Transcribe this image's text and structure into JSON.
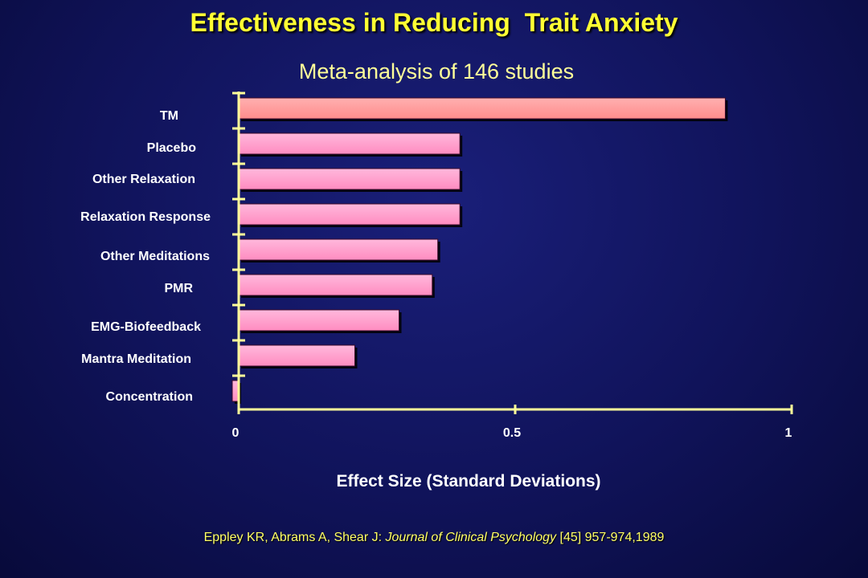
{
  "chart_data": {
    "type": "bar",
    "orientation": "horizontal",
    "title": "Effectiveness in Reducing  Trait Anxiety",
    "subtitle": "Meta-analysis of 146 studies",
    "categories": [
      "TM",
      "Placebo",
      "Other Relaxation",
      "Relaxation  Response",
      "Other Meditations",
      "PMR",
      "EMG-Biofeedback",
      "Mantra Meditation",
      "Concentration"
    ],
    "values": [
      0.88,
      0.4,
      0.4,
      0.4,
      0.36,
      0.35,
      0.29,
      0.21,
      -0.01
    ],
    "xlabel": "Effect Size (Standard Deviations)",
    "ylabel": "",
    "xlim": [
      0,
      1
    ],
    "xticks": [
      "0",
      "0.5",
      "1"
    ],
    "grid": false,
    "colors": {
      "top_bar": "#ff9999",
      "bar": "#ff99cc",
      "axis": "#ffff99"
    }
  },
  "citation": {
    "authors": "Eppley KR, Abrams A, Shear J: ",
    "journal": "Journal of Clinical Psychology",
    "details": " [45] 957-974,1989"
  }
}
